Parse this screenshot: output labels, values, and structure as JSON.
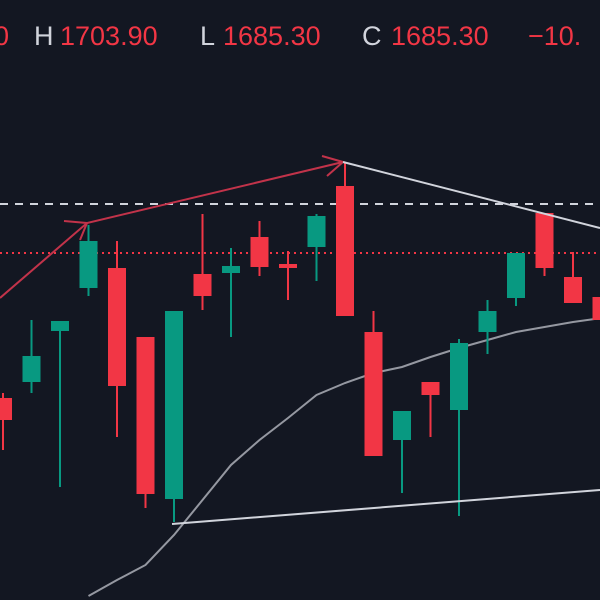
{
  "header": {
    "open_tail": "0",
    "high_label": "H",
    "high": "1703.90",
    "low_label": "L",
    "low": "1685.30",
    "close_label": "C",
    "close": "1685.30",
    "change": "−10."
  },
  "chart_data": {
    "type": "candlestick",
    "up_color": "#089981",
    "down_color": "#f23645",
    "ylim": [
      0,
      600
    ],
    "open": [
      202,
      218,
      269,
      312,
      332,
      263,
      101,
      326,
      327,
      363,
      336,
      353,
      414,
      268,
      160,
      218,
      190,
      268,
      302,
      387,
      323,
      303
    ],
    "close": [
      180,
      244,
      279,
      359,
      214,
      106,
      289,
      304,
      334,
      333,
      332,
      384,
      284,
      144,
      189,
      205,
      257,
      289,
      347,
      332,
      297,
      280
    ],
    "high": [
      207,
      280,
      279,
      375,
      359,
      263,
      289,
      386,
      352,
      379,
      349,
      386,
      438,
      289,
      189,
      218,
      261,
      300,
      347,
      387,
      348,
      303
    ],
    "low": [
      150,
      207,
      113,
      304,
      163,
      92,
      78,
      290,
      263,
      324,
      300,
      319,
      284,
      144,
      107,
      163,
      84,
      246,
      294,
      324,
      297,
      280
    ],
    "ma": {
      "color": "#9598a1",
      "values": [
        null,
        null,
        null,
        4,
        20,
        35,
        65,
        100,
        135,
        160,
        182,
        205,
        217,
        227,
        233,
        243,
        252,
        260,
        268,
        273,
        278,
        282
      ]
    },
    "price_lines": [
      {
        "value": 396,
        "color": "#d1d4dc",
        "dash": "8 7"
      },
      {
        "value": 347,
        "color": "#f23645",
        "dash": "2 4"
      }
    ]
  }
}
